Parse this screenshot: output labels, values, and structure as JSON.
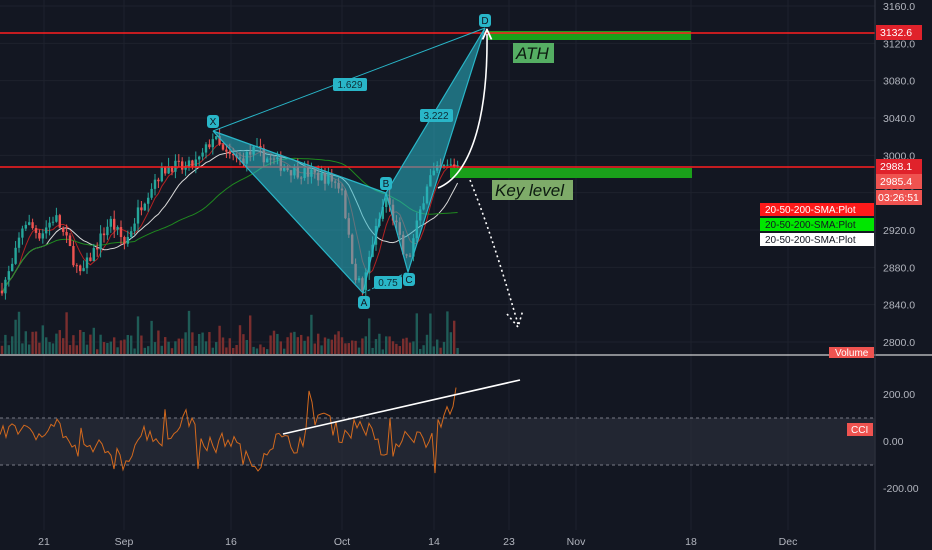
{
  "chart_data": [
    {
      "type": "candlestick",
      "instrument_axis": {
        "ylim": [
          2780,
          3165
        ],
        "y_ticks": [
          "3160.0",
          "3120.0",
          "3080.0",
          "3040.0",
          "3000.0",
          "2960.0",
          "2920.0",
          "2880.0",
          "2840.0",
          "2800.0"
        ]
      },
      "x_ticks": [
        "21",
        "Sep",
        "16",
        "Oct",
        "14",
        "23",
        "Nov",
        "18",
        "Dec"
      ],
      "price_tags": [
        {
          "value": "3132.6",
          "color": "#e0222b"
        },
        {
          "value": "2988.1",
          "color": "#e0222b"
        },
        {
          "value": "2985.4",
          "color": "#ef5350"
        },
        {
          "value": "03:26:51",
          "color": "#ef5350"
        }
      ],
      "horizontal_levels": [
        3132.6,
        2990.6
      ],
      "pattern": {
        "points": [
          {
            "label": "X",
            "price": 3026
          },
          {
            "label": "A",
            "price": 2852
          },
          {
            "label": "B",
            "price": 2956
          },
          {
            "label": "C",
            "price": 2882
          },
          {
            "label": "D",
            "price": 3132.6
          }
        ],
        "ratios": [
          "1.629",
          "0.75",
          "3.222"
        ]
      },
      "annotations": [
        "ATH",
        "Key level"
      ],
      "legend": [
        {
          "label": "20-50-200-SMA:Plot",
          "color": "#ff1a1a",
          "text_color": "#ffffff"
        },
        {
          "label": "20-50-200-SMA:Plot",
          "color": "#00e600",
          "text_color": "#131722"
        },
        {
          "label": "20-50-200-SMA:Plot",
          "color": "#ffffff",
          "text_color": "#131722"
        }
      ],
      "volume_label": "Volume"
    },
    {
      "type": "line",
      "indicator": "CCI",
      "label": "CCI",
      "y_ticks": [
        "200.00",
        "0.00",
        "-200.00"
      ],
      "ylim": [
        -300,
        300
      ],
      "band": [
        100,
        -100
      ],
      "trendline": "rising"
    }
  ],
  "colors": {
    "background": "#131722",
    "up": "#26a69a",
    "down": "#ef5350",
    "level": "#ff1f1f",
    "harmonic_fill": "#29b6c8",
    "zone": "#1aa01a",
    "cci": "#d2691e"
  }
}
